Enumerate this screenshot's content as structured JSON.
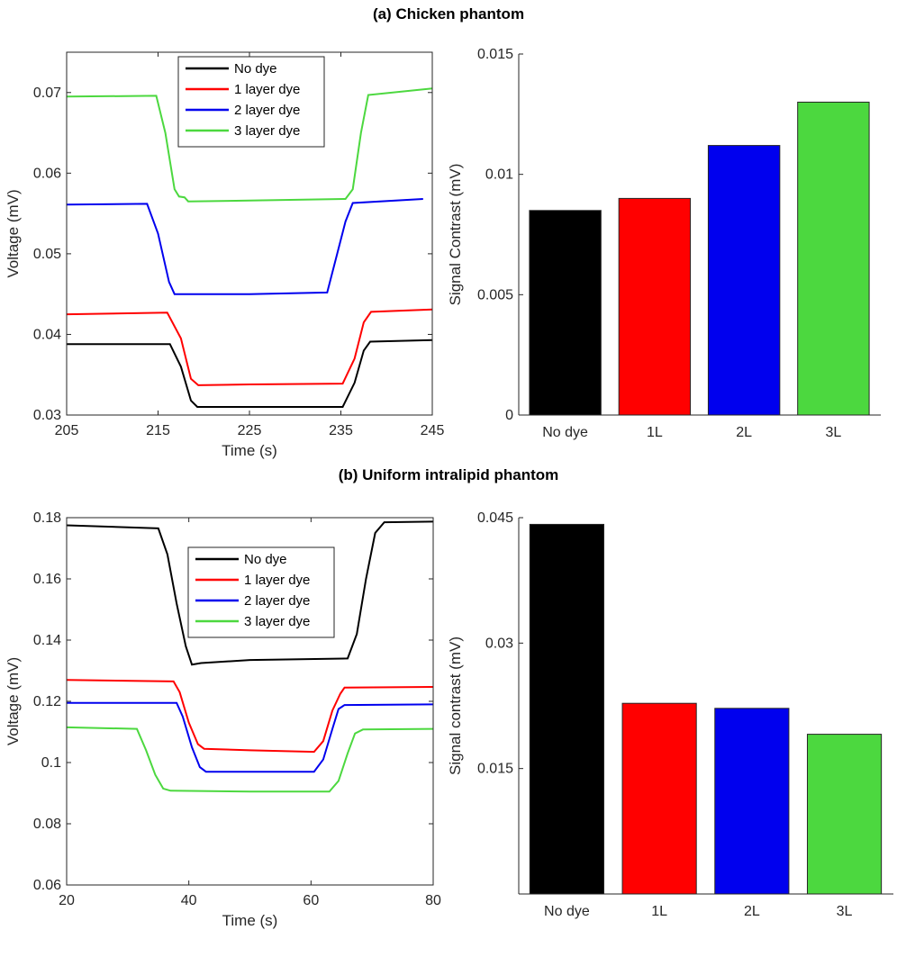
{
  "titles": {
    "a": "(a) Chicken phantom",
    "b": "(b) Uniform intralipid phantom"
  },
  "colors": {
    "black": "#000000",
    "red": "#ff0000",
    "blue": "#0000ee",
    "green": "#4cd83f"
  },
  "chart_data": [
    {
      "id": "a-left",
      "type": "line",
      "title": "",
      "xlabel": "Time (s)",
      "ylabel": "Voltage (mV)",
      "xlim": [
        205,
        245
      ],
      "ylim": [
        0.03,
        0.075
      ],
      "xticks": [
        205,
        215,
        225,
        235,
        245
      ],
      "xtick_labels": [
        "205",
        "215",
        "225",
        "235",
        "245"
      ],
      "yticks": [
        0.03,
        0.04,
        0.05,
        0.06,
        0.07
      ],
      "ytick_labels": [
        "0.03",
        "0.04",
        "0.05",
        "0.06",
        "0.07"
      ],
      "legend": "top-center",
      "series": [
        {
          "name": "No dye",
          "color": "#000000",
          "x": [
            205,
            216.3,
            217.5,
            218.6,
            219.3,
            225,
            235.2,
            236.5,
            237.5,
            238.2,
            245
          ],
          "y": [
            0.0388,
            0.0388,
            0.036,
            0.0318,
            0.031,
            0.031,
            0.031,
            0.034,
            0.038,
            0.0391,
            0.0393
          ]
        },
        {
          "name": "1 layer dye",
          "color": "#ff0000",
          "x": [
            205,
            216.0,
            217.5,
            218.6,
            219.4,
            225,
            235.2,
            236.5,
            237.5,
            238.3,
            245
          ],
          "y": [
            0.0425,
            0.0427,
            0.0395,
            0.0345,
            0.0337,
            0.0338,
            0.0339,
            0.037,
            0.0415,
            0.0428,
            0.0431
          ]
        },
        {
          "name": "2 layer dye",
          "color": "#0000ee",
          "x": [
            205,
            213.8,
            215.0,
            216.2,
            216.8,
            225,
            233.5,
            234.6,
            235.5,
            236.3,
            244
          ],
          "y": [
            0.0561,
            0.0562,
            0.0525,
            0.0465,
            0.045,
            0.045,
            0.0452,
            0.05,
            0.054,
            0.0563,
            0.0568
          ]
        },
        {
          "name": "3 layer dye",
          "color": "#4cd83f",
          "x": [
            205,
            214.8,
            215.8,
            216.8,
            217.3,
            217.9,
            218.3,
            225,
            235.5,
            236.3,
            237.2,
            238.0,
            245
          ],
          "y": [
            0.0695,
            0.0696,
            0.065,
            0.058,
            0.0571,
            0.057,
            0.0565,
            0.0566,
            0.0568,
            0.058,
            0.065,
            0.0697,
            0.0705
          ]
        }
      ]
    },
    {
      "id": "a-right",
      "type": "bar",
      "title": "",
      "xlabel": "",
      "ylabel": "Signal Contrast (mV)",
      "ylim": [
        0,
        0.015
      ],
      "yticks": [
        0,
        0.005,
        0.01,
        0.015
      ],
      "ytick_labels": [
        "0",
        "0.005",
        "0.01",
        "0.015"
      ],
      "categories": [
        "No dye",
        "1L",
        "2L",
        "3L"
      ],
      "values": [
        0.0085,
        0.009,
        0.0112,
        0.013
      ],
      "bar_colors": [
        "#000000",
        "#ff0000",
        "#0000ee",
        "#4cd83f"
      ]
    },
    {
      "id": "b-left",
      "type": "line",
      "title": "",
      "xlabel": "Time (s)",
      "ylabel": "Voltage (mV)",
      "xlim": [
        20,
        80
      ],
      "ylim": [
        0.06,
        0.18
      ],
      "xticks": [
        20,
        40,
        60,
        80
      ],
      "xtick_labels": [
        "20",
        "40",
        "60",
        "80"
      ],
      "yticks": [
        0.06,
        0.08,
        0.1,
        0.12,
        0.14,
        0.16,
        0.18
      ],
      "ytick_labels": [
        "0.06",
        "0.08",
        "0.1",
        "0.12",
        "0.14",
        "0.16",
        "0.18"
      ],
      "legend": "top-center",
      "series": [
        {
          "name": "No dye",
          "color": "#000000",
          "x": [
            20,
            35,
            36.5,
            38,
            39.5,
            40.5,
            42,
            50,
            66,
            67.5,
            69,
            70.5,
            72,
            80
          ],
          "y": [
            0.1775,
            0.1765,
            0.168,
            0.152,
            0.138,
            0.132,
            0.1325,
            0.1335,
            0.134,
            0.142,
            0.16,
            0.175,
            0.1785,
            0.1787
          ]
        },
        {
          "name": "1 layer dye",
          "color": "#ff0000",
          "x": [
            20,
            37.5,
            38.5,
            40,
            41.5,
            42.5,
            50,
            60.5,
            62,
            63.5,
            64.8,
            65.5,
            80
          ],
          "y": [
            0.127,
            0.1265,
            0.123,
            0.113,
            0.106,
            0.1045,
            0.104,
            0.1035,
            0.107,
            0.117,
            0.1225,
            0.1245,
            0.1247
          ]
        },
        {
          "name": "2 layer dye",
          "color": "#0000ee",
          "x": [
            20,
            38.0,
            39.0,
            40.5,
            41.8,
            42.8,
            50,
            60.5,
            62,
            63.5,
            64.5,
            65.5,
            80
          ],
          "y": [
            0.1195,
            0.1195,
            0.115,
            0.105,
            0.0985,
            0.097,
            0.097,
            0.097,
            0.101,
            0.111,
            0.1175,
            0.1188,
            0.119
          ]
        },
        {
          "name": "3 layer dye",
          "color": "#4cd83f",
          "x": [
            20,
            31.5,
            33,
            34.5,
            35.8,
            37,
            50,
            63,
            64.5,
            66,
            67.2,
            68.5,
            80
          ],
          "y": [
            0.1115,
            0.111,
            0.104,
            0.096,
            0.0915,
            0.0908,
            0.0905,
            0.0905,
            0.094,
            0.103,
            0.1095,
            0.1108,
            0.111
          ]
        }
      ]
    },
    {
      "id": "b-right",
      "type": "bar",
      "title": "",
      "xlabel": "",
      "ylabel": "Signal contrast (mV)",
      "ylim": [
        0,
        0.045
      ],
      "yticks": [
        0.015,
        0.03,
        0.045
      ],
      "ytick_labels": [
        "0.015",
        "0.03",
        "0.045"
      ],
      "categories": [
        "No dye",
        "1L",
        "2L",
        "3L"
      ],
      "values": [
        0.0442,
        0.0228,
        0.0222,
        0.0191
      ],
      "bar_colors": [
        "#000000",
        "#ff0000",
        "#0000ee",
        "#4cd83f"
      ]
    }
  ]
}
